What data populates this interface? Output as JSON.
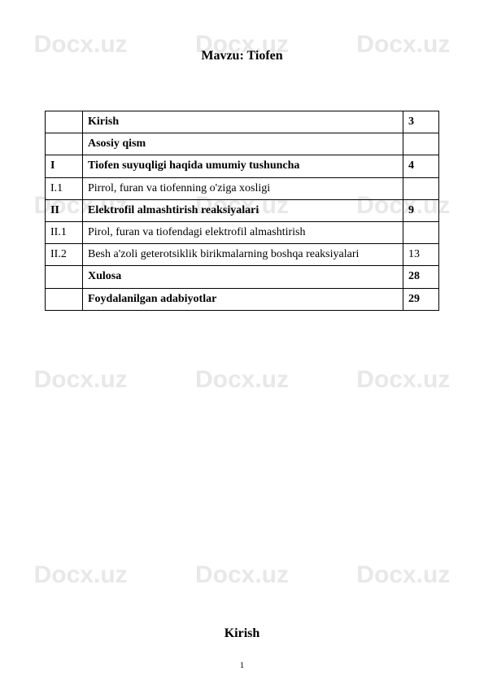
{
  "watermark": "Docx.uz",
  "title": "Mavzu: Tiofen",
  "subtitle": "Kirish",
  "pagenum": "1",
  "table": {
    "rows": [
      {
        "num": "",
        "text": "Kirish",
        "page": "3",
        "bold": true
      },
      {
        "num": "",
        "text": "Asosiy qism",
        "page": "",
        "bold": true
      },
      {
        "num": "I",
        "text": "Tiofen suyuqligi haqida umumiy tushuncha",
        "page": "4",
        "bold": true
      },
      {
        "num": "I.1",
        "text": "Pirrol, furan va tiofenning o'ziga xosligi",
        "page": "",
        "bold": false
      },
      {
        "num": "II",
        "text": "Elektrofil almashtirish reaksiyalari",
        "page": "9",
        "bold": true
      },
      {
        "num": "II.1",
        "text": "Pirol, furan va tiofendagi elektrofil almashtirish",
        "page": "",
        "bold": false
      },
      {
        "num": "II.2",
        "text": "Besh a'zoli geterotsiklik birikmalarning boshqa reaksiyalari",
        "page": "13",
        "bold": false
      },
      {
        "num": "",
        "text": "Xulosa",
        "page": "28",
        "bold": true
      },
      {
        "num": "",
        "text": "Foydalanilgan adabiyotlar",
        "page": "29",
        "bold": true
      }
    ]
  }
}
